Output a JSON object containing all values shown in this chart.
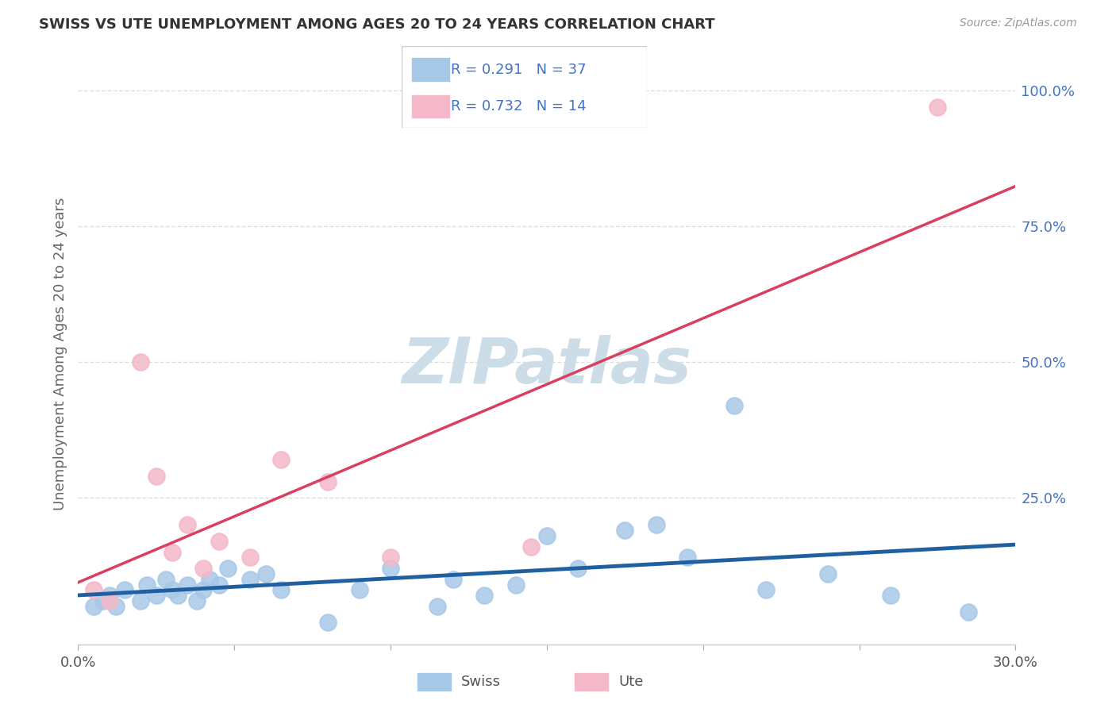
{
  "title": "SWISS VS UTE UNEMPLOYMENT AMONG AGES 20 TO 24 YEARS CORRELATION CHART",
  "source": "Source: ZipAtlas.com",
  "ylabel": "Unemployment Among Ages 20 to 24 years",
  "xlim": [
    0.0,
    0.3
  ],
  "ylim": [
    -0.02,
    1.05
  ],
  "xticks": [
    0.0,
    0.05,
    0.1,
    0.15,
    0.2,
    0.25,
    0.3
  ],
  "xtick_labels": [
    "0.0%",
    "",
    "",
    "",
    "",
    "",
    "30.0%"
  ],
  "yticks": [
    0.0,
    0.25,
    0.5,
    0.75,
    1.0
  ],
  "ytick_labels": [
    "",
    "25.0%",
    "50.0%",
    "75.0%",
    "100.0%"
  ],
  "swiss_color": "#a8c8e8",
  "ute_color": "#f4b8c8",
  "swiss_line_color": "#2060a0",
  "ute_line_color": "#d84060",
  "swiss_R": 0.291,
  "swiss_N": 37,
  "ute_R": 0.732,
  "ute_N": 14,
  "legend_R_N_color": "#4472c4",
  "watermark": "ZIPatlas",
  "watermark_color": "#ccdde8",
  "swiss_points_x": [
    0.005,
    0.008,
    0.01,
    0.012,
    0.015,
    0.02,
    0.022,
    0.025,
    0.028,
    0.03,
    0.032,
    0.035,
    0.038,
    0.04,
    0.042,
    0.045,
    0.048,
    0.055,
    0.06,
    0.065,
    0.08,
    0.09,
    0.1,
    0.115,
    0.12,
    0.13,
    0.14,
    0.15,
    0.16,
    0.175,
    0.185,
    0.195,
    0.21,
    0.22,
    0.24,
    0.26,
    0.285
  ],
  "swiss_points_y": [
    0.05,
    0.06,
    0.07,
    0.05,
    0.08,
    0.06,
    0.09,
    0.07,
    0.1,
    0.08,
    0.07,
    0.09,
    0.06,
    0.08,
    0.1,
    0.09,
    0.12,
    0.1,
    0.11,
    0.08,
    0.02,
    0.08,
    0.12,
    0.05,
    0.1,
    0.07,
    0.09,
    0.18,
    0.12,
    0.19,
    0.2,
    0.14,
    0.42,
    0.08,
    0.11,
    0.07,
    0.04
  ],
  "ute_points_x": [
    0.005,
    0.01,
    0.02,
    0.025,
    0.03,
    0.035,
    0.04,
    0.045,
    0.055,
    0.065,
    0.08,
    0.1,
    0.145,
    0.275
  ],
  "ute_points_y": [
    0.08,
    0.06,
    0.5,
    0.29,
    0.15,
    0.2,
    0.12,
    0.17,
    0.14,
    0.32,
    0.28,
    0.14,
    0.16,
    0.97
  ],
  "background_color": "#ffffff",
  "grid_color": "#dddddd"
}
